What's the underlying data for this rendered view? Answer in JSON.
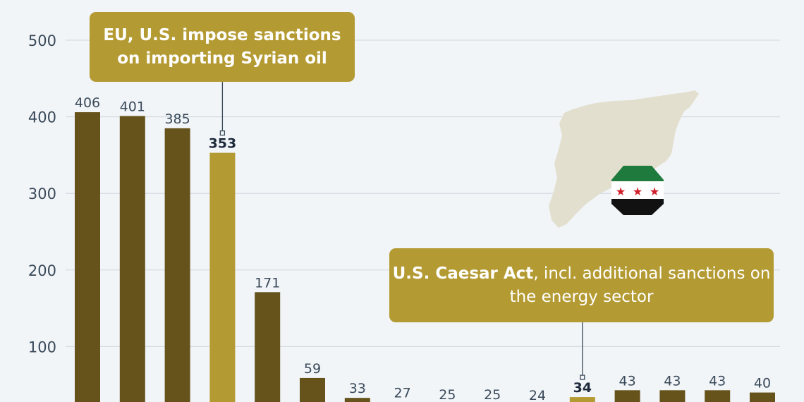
{
  "chart_data": {
    "type": "bar",
    "title": "",
    "xlabel": "",
    "ylabel": "",
    "ylim": [
      0,
      500
    ],
    "yticks": [
      100,
      200,
      300,
      400,
      500
    ],
    "grid": true,
    "values": [
      406,
      401,
      385,
      353,
      171,
      59,
      33,
      27,
      25,
      25,
      24,
      34,
      43,
      43,
      43,
      40
    ],
    "highlighted_indices": [
      3,
      11
    ],
    "colors": {
      "bar": "#66531c",
      "highlight": "#b49a32",
      "grid": "#cfd6dc",
      "map": "#e3dfcf"
    },
    "annotations": [
      {
        "bar_index": 3,
        "text_bold": "EU, U.S. impose sanctions on importing Syrian oil",
        "text_regular": ""
      },
      {
        "bar_index": 11,
        "text_bold": "U.S. Caesar Act",
        "text_regular": ", incl. additional sanctions on the energy sector"
      }
    ],
    "decorations": [
      "syria-map-silhouette",
      "syria-flag-icon"
    ]
  }
}
